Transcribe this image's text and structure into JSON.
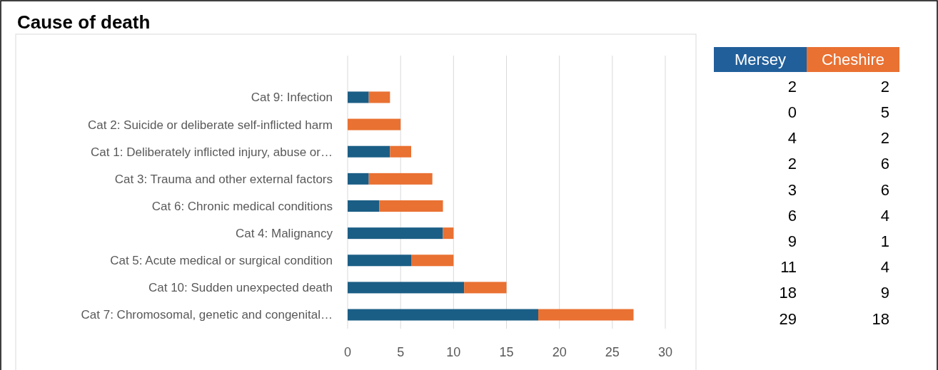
{
  "chart_data": [
    {
      "type": "bar",
      "title": "Cause of death",
      "orientation": "horizontal",
      "stacked": true,
      "categories": [
        "Cat 9: Infection",
        "Cat 2: Suicide or deliberate self-inflicted harm",
        "Cat 1: Deliberately inflicted injury, abuse or…",
        "Cat 3: Trauma and other external factors",
        "Cat 6: Chronic medical conditions",
        "Cat 4: Malignancy",
        "Cat 5: Acute medical or surgical condition",
        "Cat 10: Sudden unexpected death",
        "Cat 7: Chromosomal, genetic and congenital…"
      ],
      "series": [
        {
          "color": "#1b5e85",
          "values": [
            2,
            0,
            4,
            2,
            3,
            9,
            6,
            11,
            18
          ]
        },
        {
          "color": "#e97132",
          "values": [
            2,
            5,
            2,
            6,
            6,
            1,
            4,
            4,
            9
          ]
        }
      ],
      "xlim": [
        0,
        30
      ],
      "xticks": [
        0,
        5,
        10,
        15,
        20,
        25,
        30
      ],
      "grid": "x"
    },
    {
      "type": "other",
      "categories": [
        "Mersey",
        "Cheshire"
      ],
      "colors": [
        "#215f9a",
        "#e97132"
      ],
      "annotations": [
        "2",
        "2",
        "0",
        "5",
        "4",
        "2",
        "2",
        "6",
        "3",
        "6",
        "6",
        "4",
        "9",
        "1",
        "11",
        "4",
        "18",
        "9",
        "29",
        "18"
      ]
    }
  ]
}
